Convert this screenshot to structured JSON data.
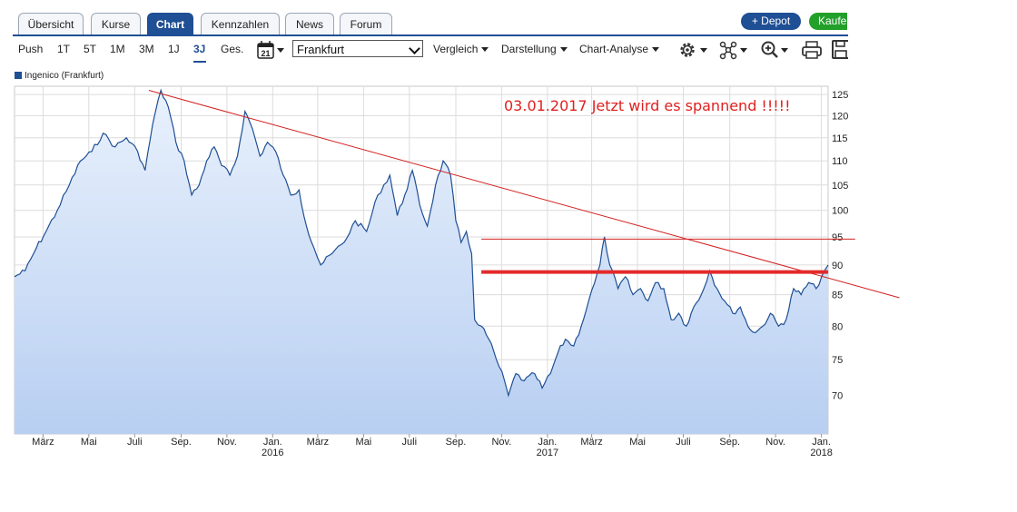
{
  "tabs": [
    {
      "label": "Übersicht",
      "active": false
    },
    {
      "label": "Kurse",
      "active": false
    },
    {
      "label": "Chart",
      "active": true
    },
    {
      "label": "Kennzahlen",
      "active": false
    },
    {
      "label": "News",
      "active": false
    },
    {
      "label": "Forum",
      "active": false
    }
  ],
  "actions": {
    "depot_label": "+ Depot",
    "kaufen_label": "Kaufen"
  },
  "toolbar": {
    "periods": [
      "Push",
      "1T",
      "5T",
      "1M",
      "3M",
      "1J",
      "3J",
      "Ges."
    ],
    "active_period": "3J",
    "calendar_day": "21",
    "exchange": "Frankfurt",
    "menus": [
      "Vergleich",
      "Darstellung",
      "Chart-Analyse"
    ],
    "icons": [
      "gear-icon",
      "network-icon",
      "zoom-icon",
      "print-icon",
      "save-icon"
    ]
  },
  "chart_data": {
    "type": "area",
    "legend": "Ingenico (Frankfurt)",
    "colors": {
      "line": "#1f4f94",
      "fill_top": "#e9f1fc",
      "fill_bottom": "#b8cff2",
      "annotation": "#d42020"
    },
    "y_ticks": [
      70,
      75,
      80,
      85,
      90,
      95,
      100,
      105,
      110,
      115,
      120,
      125
    ],
    "y_range": [
      65,
      127
    ],
    "y_scale": "log",
    "x_ticks": [
      {
        "label": "März",
        "sub": "",
        "date": "2015-03-01"
      },
      {
        "label": "Mai",
        "sub": "",
        "date": "2015-05-01"
      },
      {
        "label": "Juli",
        "sub": "",
        "date": "2015-07-01"
      },
      {
        "label": "Sep.",
        "sub": "",
        "date": "2015-09-01"
      },
      {
        "label": "Nov.",
        "sub": "",
        "date": "2015-11-01"
      },
      {
        "label": "Jan.",
        "sub": "2016",
        "date": "2016-01-01"
      },
      {
        "label": "März",
        "sub": "",
        "date": "2016-03-01"
      },
      {
        "label": "Mai",
        "sub": "",
        "date": "2016-05-01"
      },
      {
        "label": "Juli",
        "sub": "",
        "date": "2016-07-01"
      },
      {
        "label": "Sep.",
        "sub": "",
        "date": "2016-09-01"
      },
      {
        "label": "Nov.",
        "sub": "",
        "date": "2016-11-01"
      },
      {
        "label": "Jan.",
        "sub": "2017",
        "date": "2017-01-01"
      },
      {
        "label": "März",
        "sub": "",
        "date": "2017-03-01"
      },
      {
        "label": "Mai",
        "sub": "",
        "date": "2017-05-01"
      },
      {
        "label": "Juli",
        "sub": "",
        "date": "2017-07-01"
      },
      {
        "label": "Sep.",
        "sub": "",
        "date": "2017-09-01"
      },
      {
        "label": "Nov.",
        "sub": "",
        "date": "2017-11-01"
      },
      {
        "label": "Jan.",
        "sub": "2018",
        "date": "2018-01-01"
      }
    ],
    "x_range": [
      "2015-01-22",
      "2018-01-10"
    ],
    "grid": true,
    "series": [
      {
        "points": [
          [
            "2015-01-22",
            88
          ],
          [
            "2015-02-05",
            89
          ],
          [
            "2015-02-20",
            93
          ],
          [
            "2015-03-05",
            96
          ],
          [
            "2015-03-20",
            100
          ],
          [
            "2015-04-05",
            105
          ],
          [
            "2015-04-20",
            110
          ],
          [
            "2015-05-05",
            112
          ],
          [
            "2015-05-20",
            116
          ],
          [
            "2015-06-05",
            113
          ],
          [
            "2015-06-20",
            115
          ],
          [
            "2015-07-05",
            112
          ],
          [
            "2015-07-15",
            108
          ],
          [
            "2015-07-25",
            118
          ],
          [
            "2015-08-05",
            126
          ],
          [
            "2015-08-15",
            122
          ],
          [
            "2015-08-25",
            114
          ],
          [
            "2015-09-05",
            110
          ],
          [
            "2015-09-15",
            103
          ],
          [
            "2015-09-25",
            105
          ],
          [
            "2015-10-05",
            110
          ],
          [
            "2015-10-15",
            113
          ],
          [
            "2015-10-25",
            109
          ],
          [
            "2015-11-05",
            107
          ],
          [
            "2015-11-15",
            111
          ],
          [
            "2015-11-25",
            121
          ],
          [
            "2015-12-05",
            117
          ],
          [
            "2015-12-15",
            111
          ],
          [
            "2015-12-25",
            114
          ],
          [
            "2016-01-05",
            112
          ],
          [
            "2016-01-15",
            107
          ],
          [
            "2016-01-25",
            103
          ],
          [
            "2016-02-05",
            104
          ],
          [
            "2016-02-15",
            97
          ],
          [
            "2016-02-25",
            93
          ],
          [
            "2016-03-05",
            90
          ],
          [
            "2016-03-20",
            92
          ],
          [
            "2016-04-05",
            94
          ],
          [
            "2016-04-20",
            98
          ],
          [
            "2016-05-05",
            96
          ],
          [
            "2016-05-20",
            103
          ],
          [
            "2016-06-05",
            107
          ],
          [
            "2016-06-15",
            99
          ],
          [
            "2016-06-25",
            103
          ],
          [
            "2016-07-05",
            108
          ],
          [
            "2016-07-15",
            101
          ],
          [
            "2016-07-25",
            97
          ],
          [
            "2016-08-05",
            105
          ],
          [
            "2016-08-15",
            110
          ],
          [
            "2016-08-25",
            107
          ],
          [
            "2016-09-01",
            98
          ],
          [
            "2016-09-08",
            94
          ],
          [
            "2016-09-15",
            96
          ],
          [
            "2016-09-22",
            92
          ],
          [
            "2016-09-26",
            81
          ],
          [
            "2016-10-05",
            80
          ],
          [
            "2016-10-15",
            78
          ],
          [
            "2016-10-25",
            75
          ],
          [
            "2016-11-05",
            72
          ],
          [
            "2016-11-10",
            70
          ],
          [
            "2016-11-20",
            73
          ],
          [
            "2016-12-01",
            72
          ],
          [
            "2016-12-15",
            73
          ],
          [
            "2016-12-25",
            71
          ],
          [
            "2017-01-05",
            73
          ],
          [
            "2017-01-15",
            76
          ],
          [
            "2017-01-25",
            78
          ],
          [
            "2017-02-05",
            77
          ],
          [
            "2017-02-15",
            80
          ],
          [
            "2017-02-25",
            84
          ],
          [
            "2017-03-05",
            87
          ],
          [
            "2017-03-12",
            90
          ],
          [
            "2017-03-18",
            95
          ],
          [
            "2017-03-25",
            90
          ],
          [
            "2017-04-05",
            86
          ],
          [
            "2017-04-15",
            88
          ],
          [
            "2017-04-25",
            85
          ],
          [
            "2017-05-05",
            86
          ],
          [
            "2017-05-15",
            84
          ],
          [
            "2017-05-25",
            87
          ],
          [
            "2017-06-05",
            86
          ],
          [
            "2017-06-15",
            81
          ],
          [
            "2017-06-25",
            82
          ],
          [
            "2017-07-05",
            80
          ],
          [
            "2017-07-15",
            83
          ],
          [
            "2017-07-25",
            85
          ],
          [
            "2017-08-05",
            89
          ],
          [
            "2017-08-15",
            86
          ],
          [
            "2017-08-25",
            84
          ],
          [
            "2017-09-05",
            82
          ],
          [
            "2017-09-15",
            83
          ],
          [
            "2017-09-25",
            80
          ],
          [
            "2017-10-05",
            79
          ],
          [
            "2017-10-15",
            80
          ],
          [
            "2017-10-25",
            82
          ],
          [
            "2017-11-05",
            80
          ],
          [
            "2017-11-15",
            81
          ],
          [
            "2017-11-25",
            86
          ],
          [
            "2017-12-05",
            85
          ],
          [
            "2017-12-15",
            87
          ],
          [
            "2017-12-25",
            86
          ],
          [
            "2018-01-05",
            89
          ],
          [
            "2018-01-10",
            90
          ]
        ]
      }
    ],
    "annotations": {
      "text": "03.01.2017  Jetzt wird es spannend !!!!!",
      "trend_line": {
        "from": [
          "2015-07-20",
          126
        ],
        "to": [
          "2018-04-15",
          84.5
        ]
      },
      "resistance_line": {
        "from": [
          "2016-10-05",
          94.6
        ],
        "to": [
          "2018-02-15",
          94.6
        ]
      },
      "support_line": {
        "from": [
          "2016-10-05",
          88.8
        ],
        "to": [
          "2018-01-10",
          88.8
        ]
      }
    }
  }
}
